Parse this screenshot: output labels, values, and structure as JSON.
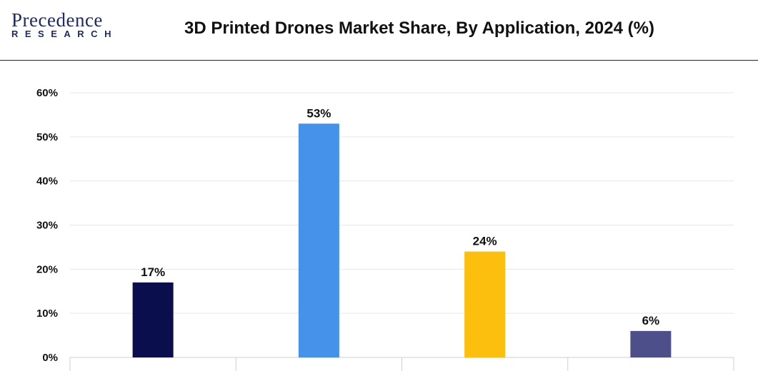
{
  "logo": {
    "name_main": "Precedence",
    "name_sub": "RESEARCH"
  },
  "title": "3D Printed Drones Market Share, By Application, 2024 (%)",
  "colors": {
    "grid": "#e6e6e6",
    "axis": "#cfcfcf",
    "text": "#111111"
  },
  "chart_data": {
    "type": "bar",
    "title": "3D Printed Drones Market Share, By Application, 2024 (%)",
    "categories": [
      "",
      "",
      "",
      ""
    ],
    "values": [
      17,
      53,
      24,
      6
    ],
    "data_labels": [
      "17%",
      "53%",
      "24%",
      "6%"
    ],
    "bar_colors": [
      "#0b0e4d",
      "#4592ea",
      "#fcbf0e",
      "#4c4f8a"
    ],
    "ylim": [
      0,
      60
    ],
    "yticks": [
      0,
      10,
      20,
      30,
      40,
      50,
      60
    ],
    "ytick_labels": [
      "0%",
      "10%",
      "20%",
      "30%",
      "40%",
      "50%",
      "60%"
    ],
    "xlabel": "",
    "ylabel": "",
    "grid": true,
    "legend": "none"
  }
}
